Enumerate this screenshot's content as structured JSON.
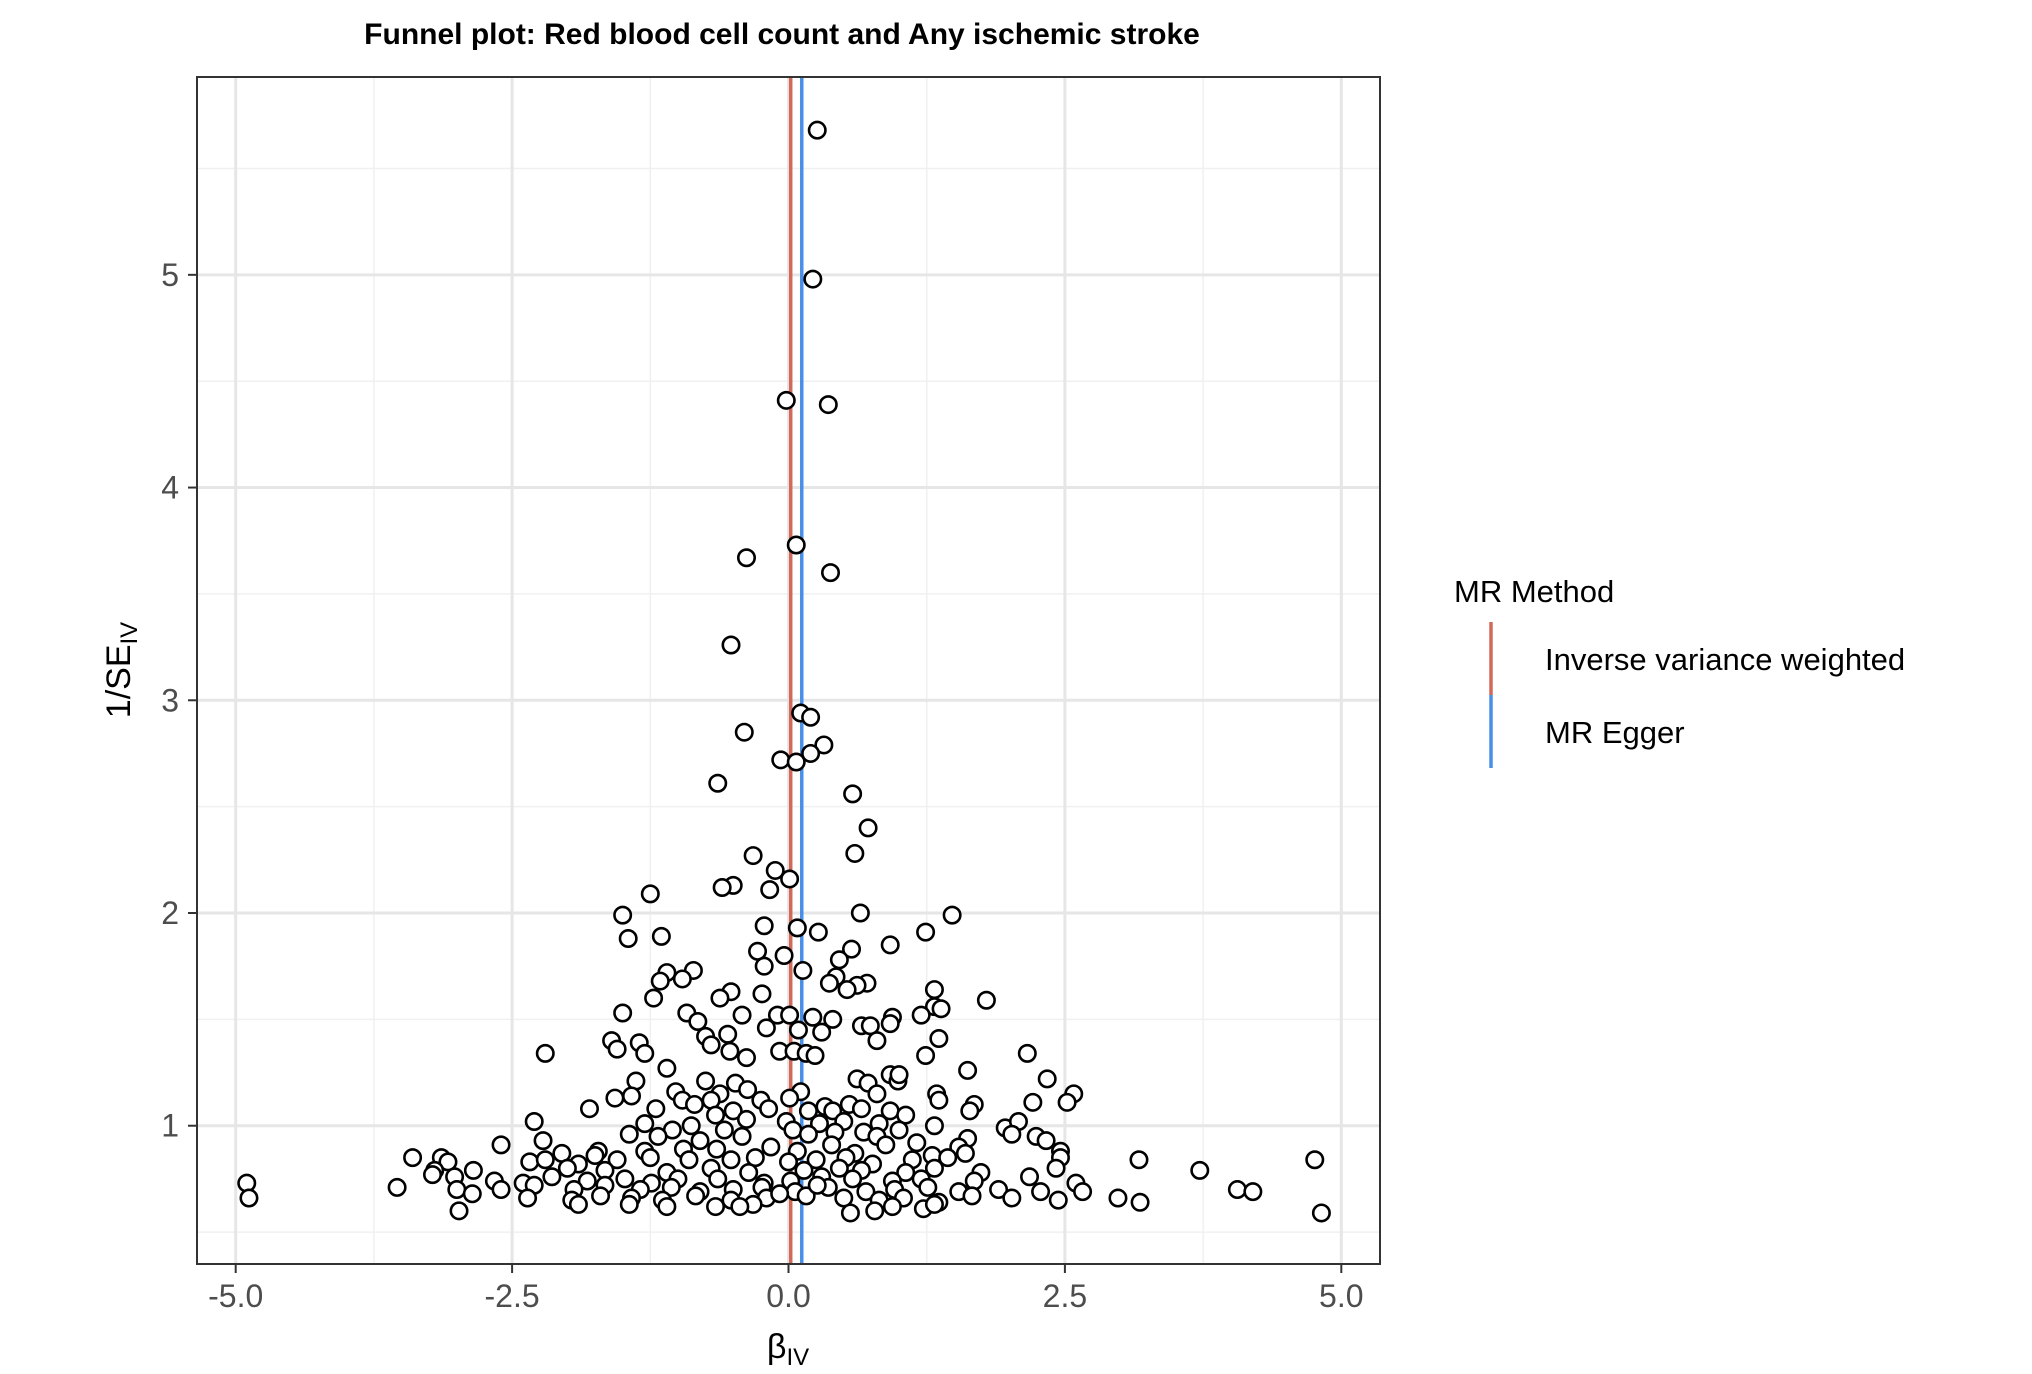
{
  "chart_data": {
    "type": "scatter",
    "title": "Funnel plot: Red blood cell count and Any ischemic stroke",
    "xlabel": "β",
    "xlabel_sub": "IV",
    "ylabel_prefix": "1/SE",
    "ylabel_sub": "IV",
    "xlim": [
      -5.35,
      5.35
    ],
    "ylim": [
      0.35,
      5.93
    ],
    "x_ticks": [
      -5.0,
      -2.5,
      0.0,
      2.5,
      5.0
    ],
    "x_tick_labels": [
      "-5.0",
      "-2.5",
      "0.0",
      "2.5",
      "5.0"
    ],
    "y_ticks": [
      1,
      2,
      3,
      4,
      5
    ],
    "y_tick_labels": [
      "1",
      "2",
      "3",
      "4",
      "5"
    ],
    "grid": true,
    "legend": {
      "title": "MR Method",
      "position": "right",
      "entries": [
        {
          "label": "Inverse variance weighted",
          "color": "#D2695A",
          "x_value": 0.02
        },
        {
          "label": "MR Egger",
          "color": "#4A8FE7",
          "x_value": 0.12
        }
      ]
    },
    "points": [
      [
        0.26,
        5.68
      ],
      [
        0.22,
        4.98
      ],
      [
        -0.02,
        4.41
      ],
      [
        0.36,
        4.39
      ],
      [
        0.07,
        3.73
      ],
      [
        -0.38,
        3.67
      ],
      [
        0.38,
        3.6
      ],
      [
        -0.52,
        3.26
      ],
      [
        0.11,
        2.94
      ],
      [
        0.2,
        2.92
      ],
      [
        -0.4,
        2.85
      ],
      [
        0.32,
        2.79
      ],
      [
        0.2,
        2.75
      ],
      [
        -0.07,
        2.72
      ],
      [
        0.07,
        2.71
      ],
      [
        -0.64,
        2.61
      ],
      [
        0.58,
        2.56
      ],
      [
        0.72,
        2.4
      ],
      [
        -0.32,
        2.27
      ],
      [
        0.6,
        2.28
      ],
      [
        -0.12,
        2.2
      ],
      [
        0.01,
        2.16
      ],
      [
        -0.5,
        2.13
      ],
      [
        -0.6,
        2.12
      ],
      [
        -0.17,
        2.11
      ],
      [
        -1.25,
        2.09
      ],
      [
        0.65,
        2.0
      ],
      [
        1.48,
        1.99
      ],
      [
        -1.5,
        1.99
      ],
      [
        -0.22,
        1.94
      ],
      [
        0.08,
        1.93
      ],
      [
        0.27,
        1.91
      ],
      [
        1.24,
        1.91
      ],
      [
        -1.15,
        1.89
      ],
      [
        -1.45,
        1.88
      ],
      [
        0.92,
        1.85
      ],
      [
        0.57,
        1.83
      ],
      [
        -0.28,
        1.82
      ],
      [
        -0.04,
        1.8
      ],
      [
        0.46,
        1.78
      ],
      [
        -0.22,
        1.75
      ],
      [
        0.13,
        1.73
      ],
      [
        -0.86,
        1.73
      ],
      [
        -1.1,
        1.72
      ],
      [
        -0.96,
        1.69
      ],
      [
        -1.16,
        1.68
      ],
      [
        0.43,
        1.7
      ],
      [
        0.37,
        1.67
      ],
      [
        0.71,
        1.67
      ],
      [
        0.62,
        1.66
      ],
      [
        -0.52,
        1.63
      ],
      [
        0.53,
        1.64
      ],
      [
        1.32,
        1.64
      ],
      [
        -0.24,
        1.62
      ],
      [
        -0.62,
        1.6
      ],
      [
        -1.22,
        1.6
      ],
      [
        1.32,
        1.56
      ],
      [
        1.38,
        1.55
      ],
      [
        1.79,
        1.59
      ],
      [
        -1.5,
        1.53
      ],
      [
        -0.92,
        1.53
      ],
      [
        -0.1,
        1.52
      ],
      [
        0.01,
        1.52
      ],
      [
        0.22,
        1.51
      ],
      [
        0.4,
        1.5
      ],
      [
        0.94,
        1.51
      ],
      [
        -0.42,
        1.52
      ],
      [
        -0.82,
        1.49
      ],
      [
        0.92,
        1.48
      ],
      [
        1.2,
        1.52
      ],
      [
        0.66,
        1.47
      ],
      [
        0.74,
        1.47
      ],
      [
        -0.2,
        1.46
      ],
      [
        0.09,
        1.45
      ],
      [
        0.3,
        1.44
      ],
      [
        -0.55,
        1.43
      ],
      [
        1.36,
        1.41
      ],
      [
        -1.6,
        1.4
      ],
      [
        -1.35,
        1.39
      ],
      [
        -0.75,
        1.42
      ],
      [
        0.8,
        1.4
      ],
      [
        -0.7,
        1.38
      ],
      [
        -1.55,
        1.36
      ],
      [
        -0.08,
        1.35
      ],
      [
        -0.53,
        1.35
      ],
      [
        0.05,
        1.35
      ],
      [
        0.16,
        1.34
      ],
      [
        0.24,
        1.33
      ],
      [
        -2.2,
        1.34
      ],
      [
        -1.3,
        1.34
      ],
      [
        -0.38,
        1.32
      ],
      [
        1.24,
        1.33
      ],
      [
        2.16,
        1.34
      ],
      [
        1.62,
        1.26
      ],
      [
        -1.1,
        1.27
      ],
      [
        0.92,
        1.24
      ],
      [
        0.62,
        1.22
      ],
      [
        0.99,
        1.21
      ],
      [
        1.0,
        1.24
      ],
      [
        2.34,
        1.22
      ],
      [
        -1.38,
        1.21
      ],
      [
        -0.75,
        1.21
      ],
      [
        -0.48,
        1.2
      ],
      [
        0.72,
        1.2
      ],
      [
        -1.02,
        1.16
      ],
      [
        -0.37,
        1.17
      ],
      [
        0.11,
        1.16
      ],
      [
        0.8,
        1.15
      ],
      [
        -0.62,
        1.15
      ],
      [
        -1.42,
        1.14
      ],
      [
        2.58,
        1.15
      ],
      [
        1.34,
        1.15
      ],
      [
        -1.57,
        1.13
      ],
      [
        -0.96,
        1.12
      ],
      [
        -0.7,
        1.12
      ],
      [
        -0.25,
        1.12
      ],
      [
        0.01,
        1.13
      ],
      [
        0.33,
        1.09
      ],
      [
        0.55,
        1.1
      ],
      [
        1.68,
        1.1
      ],
      [
        1.36,
        1.12
      ],
      [
        2.52,
        1.11
      ],
      [
        2.21,
        1.11
      ],
      [
        -1.8,
        1.08
      ],
      [
        -1.2,
        1.08
      ],
      [
        -0.85,
        1.1
      ],
      [
        -0.5,
        1.07
      ],
      [
        -0.18,
        1.08
      ],
      [
        0.18,
        1.07
      ],
      [
        0.4,
        1.07
      ],
      [
        0.66,
        1.08
      ],
      [
        0.92,
        1.07
      ],
      [
        1.06,
        1.05
      ],
      [
        1.64,
        1.07
      ],
      [
        -0.66,
        1.05
      ],
      [
        -0.02,
        1.02
      ],
      [
        -0.38,
        1.03
      ],
      [
        0.28,
        1.01
      ],
      [
        0.5,
        1.02
      ],
      [
        0.82,
        1.01
      ],
      [
        -1.3,
        1.01
      ],
      [
        -0.88,
        1.0
      ],
      [
        1.32,
        1.0
      ],
      [
        1.96,
        0.99
      ],
      [
        2.08,
        1.02
      ],
      [
        -2.3,
        1.02
      ],
      [
        -1.05,
        0.98
      ],
      [
        -0.58,
        0.98
      ],
      [
        0.04,
        0.98
      ],
      [
        0.42,
        0.97
      ],
      [
        0.68,
        0.97
      ],
      [
        1.0,
        0.98
      ],
      [
        2.02,
        0.96
      ],
      [
        2.24,
        0.95
      ],
      [
        -1.44,
        0.96
      ],
      [
        -0.42,
        0.95
      ],
      [
        0.18,
        0.96
      ],
      [
        -1.18,
        0.95
      ],
      [
        -0.8,
        0.93
      ],
      [
        0.8,
        0.95
      ],
      [
        1.62,
        0.94
      ],
      [
        2.33,
        0.93
      ],
      [
        -2.22,
        0.93
      ],
      [
        -2.6,
        0.91
      ],
      [
        0.39,
        0.91
      ],
      [
        0.88,
        0.91
      ],
      [
        1.16,
        0.92
      ],
      [
        1.54,
        0.9
      ],
      [
        -0.16,
        0.9
      ],
      [
        -0.65,
        0.89
      ],
      [
        -0.95,
        0.89
      ],
      [
        -1.3,
        0.88
      ],
      [
        -1.72,
        0.88
      ],
      [
        -2.05,
        0.87
      ],
      [
        0.08,
        0.88
      ],
      [
        0.6,
        0.87
      ],
      [
        1.3,
        0.86
      ],
      [
        1.6,
        0.87
      ],
      [
        2.46,
        0.88
      ],
      [
        -3.4,
        0.85
      ],
      [
        -3.14,
        0.85
      ],
      [
        -3.08,
        0.83
      ],
      [
        -2.34,
        0.83
      ],
      [
        -2.2,
        0.84
      ],
      [
        -1.9,
        0.82
      ],
      [
        -1.75,
        0.86
      ],
      [
        -1.55,
        0.84
      ],
      [
        -1.25,
        0.85
      ],
      [
        -0.9,
        0.84
      ],
      [
        -0.52,
        0.84
      ],
      [
        -0.3,
        0.85
      ],
      [
        0.0,
        0.83
      ],
      [
        0.25,
        0.84
      ],
      [
        0.52,
        0.85
      ],
      [
        0.76,
        0.82
      ],
      [
        1.12,
        0.84
      ],
      [
        1.44,
        0.85
      ],
      [
        2.46,
        0.85
      ],
      [
        3.17,
        0.84
      ],
      [
        4.76,
        0.84
      ],
      [
        -3.2,
        0.79
      ],
      [
        -2.85,
        0.79
      ],
      [
        -3.22,
        0.77
      ],
      [
        -2.0,
        0.8
      ],
      [
        -1.66,
        0.79
      ],
      [
        -1.1,
        0.78
      ],
      [
        -0.7,
        0.8
      ],
      [
        -0.36,
        0.78
      ],
      [
        0.14,
        0.79
      ],
      [
        0.46,
        0.8
      ],
      [
        0.66,
        0.79
      ],
      [
        1.06,
        0.78
      ],
      [
        1.32,
        0.8
      ],
      [
        1.74,
        0.78
      ],
      [
        2.42,
        0.8
      ],
      [
        3.72,
        0.79
      ],
      [
        -3.02,
        0.76
      ],
      [
        -2.66,
        0.74
      ],
      [
        -2.4,
        0.73
      ],
      [
        -2.14,
        0.76
      ],
      [
        -1.82,
        0.74
      ],
      [
        -1.48,
        0.75
      ],
      [
        -1.24,
        0.73
      ],
      [
        -1.0,
        0.75
      ],
      [
        -0.64,
        0.75
      ],
      [
        -0.22,
        0.73
      ],
      [
        0.02,
        0.74
      ],
      [
        0.3,
        0.76
      ],
      [
        0.58,
        0.75
      ],
      [
        0.94,
        0.74
      ],
      [
        1.2,
        0.75
      ],
      [
        1.68,
        0.74
      ],
      [
        2.18,
        0.76
      ],
      [
        2.6,
        0.73
      ],
      [
        -4.9,
        0.73
      ],
      [
        -3.54,
        0.71
      ],
      [
        -3.0,
        0.7
      ],
      [
        -2.6,
        0.7
      ],
      [
        -2.3,
        0.72
      ],
      [
        -1.94,
        0.7
      ],
      [
        -1.66,
        0.72
      ],
      [
        -1.34,
        0.7
      ],
      [
        -1.06,
        0.71
      ],
      [
        -0.8,
        0.69
      ],
      [
        -0.5,
        0.7
      ],
      [
        -0.24,
        0.71
      ],
      [
        0.06,
        0.69
      ],
      [
        0.36,
        0.71
      ],
      [
        0.7,
        0.69
      ],
      [
        0.96,
        0.7
      ],
      [
        1.26,
        0.71
      ],
      [
        1.54,
        0.69
      ],
      [
        1.9,
        0.7
      ],
      [
        2.28,
        0.69
      ],
      [
        2.66,
        0.69
      ],
      [
        4.06,
        0.7
      ],
      [
        4.2,
        0.69
      ],
      [
        -4.88,
        0.66
      ],
      [
        -2.86,
        0.68
      ],
      [
        -2.36,
        0.66
      ],
      [
        -1.96,
        0.65
      ],
      [
        -1.7,
        0.67
      ],
      [
        -1.42,
        0.66
      ],
      [
        -1.14,
        0.65
      ],
      [
        -0.84,
        0.67
      ],
      [
        -0.52,
        0.65
      ],
      [
        -0.2,
        0.66
      ],
      [
        0.16,
        0.67
      ],
      [
        0.5,
        0.66
      ],
      [
        0.82,
        0.65
      ],
      [
        1.04,
        0.66
      ],
      [
        1.36,
        0.64
      ],
      [
        1.66,
        0.67
      ],
      [
        2.02,
        0.66
      ],
      [
        2.44,
        0.65
      ],
      [
        2.98,
        0.66
      ],
      [
        3.18,
        0.64
      ],
      [
        -2.98,
        0.6
      ],
      [
        -1.9,
        0.63
      ],
      [
        -1.44,
        0.63
      ],
      [
        -1.1,
        0.62
      ],
      [
        -0.66,
        0.62
      ],
      [
        -0.32,
        0.63
      ],
      [
        0.56,
        0.59
      ],
      [
        0.78,
        0.6
      ],
      [
        1.22,
        0.61
      ],
      [
        1.32,
        0.63
      ],
      [
        4.82,
        0.59
      ],
      [
        -0.08,
        0.68
      ],
      [
        0.26,
        0.72
      ],
      [
        -0.44,
        0.62
      ],
      [
        0.94,
        0.62
      ]
    ]
  }
}
